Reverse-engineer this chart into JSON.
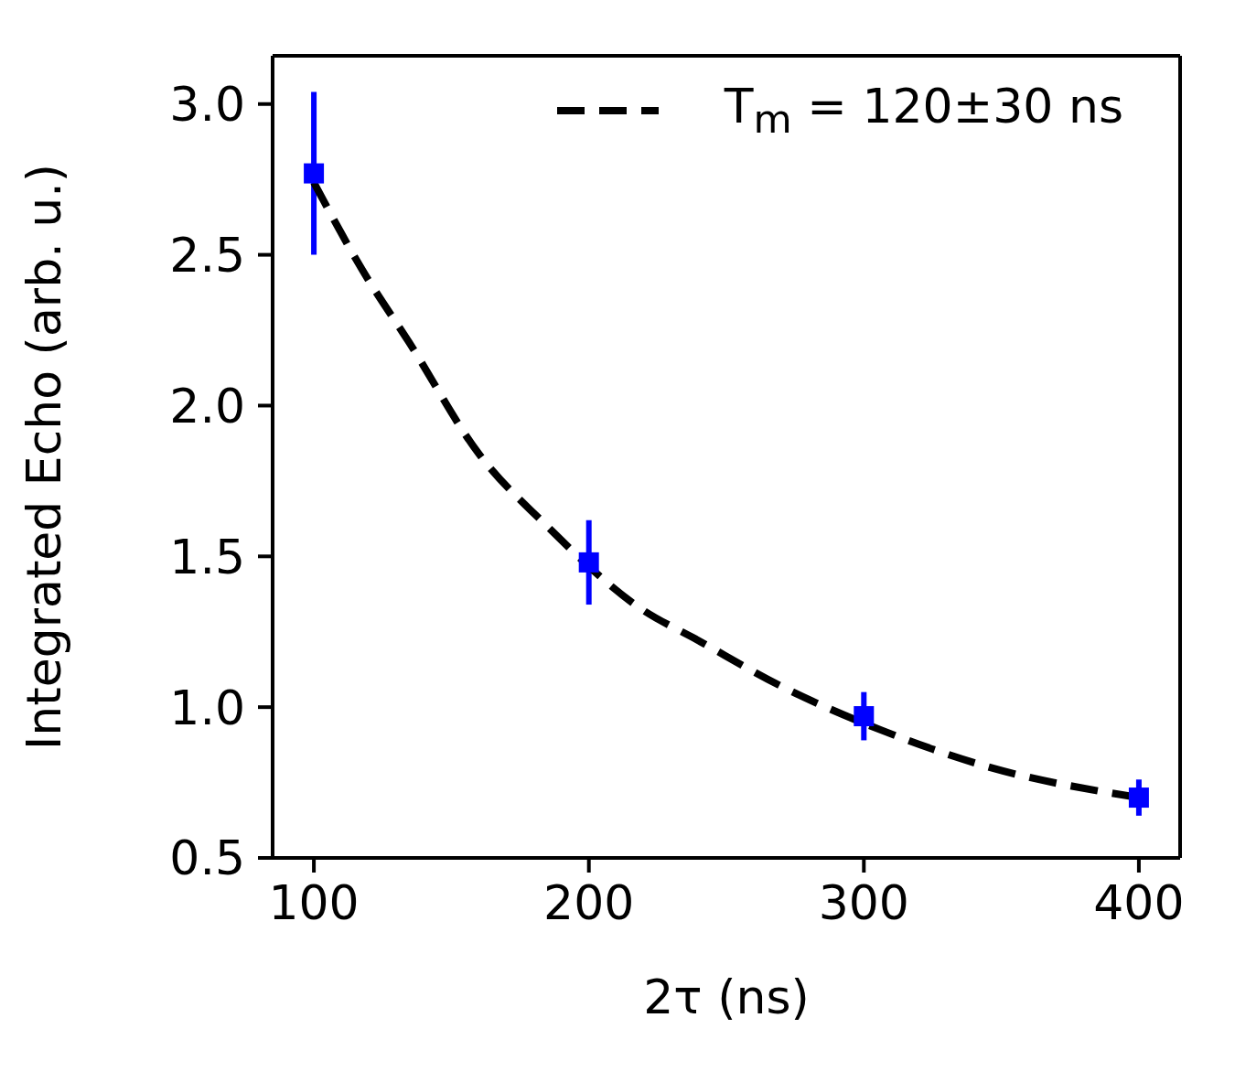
{
  "chart_data": {
    "type": "scatter",
    "xlabel": "2τ (ns)",
    "ylabel": "Integrated Echo (arb. u.)",
    "xlim": [
      85,
      415
    ],
    "ylim": [
      0.5,
      3.16
    ],
    "xticks": [
      100,
      200,
      300,
      400
    ],
    "yticks": [
      0.5,
      {
        "value": 1,
        "label": "1.0"
      },
      1.5,
      {
        "value": 2,
        "label": "2.0"
      },
      2.5,
      {
        "value": 3,
        "label": "3.0"
      }
    ],
    "grid": false,
    "legend": "top right",
    "series": [
      {
        "color": "#0000ff",
        "marker": "square",
        "x": [
          100,
          200,
          300,
          400
        ],
        "values": [
          2.77,
          1.48,
          0.97,
          0.7
        ],
        "errors": [
          0.27,
          0.14,
          0.08,
          0.06
        ]
      },
      {
        "type": "line",
        "name": "T$_{m}$ = 120±30 ns",
        "color": "#000000",
        "marker": "none",
        "line_style": "dashed",
        "x": [
          100,
          117.6,
          134.6,
          160,
          183.7,
          220,
          238,
          272,
          306,
          346,
          400
        ],
        "values": [
          2.74,
          2.45,
          2.21,
          1.84,
          1.61,
          1.32,
          1.23,
          1.06,
          0.925,
          0.8,
          0.7
        ]
      }
    ]
  }
}
